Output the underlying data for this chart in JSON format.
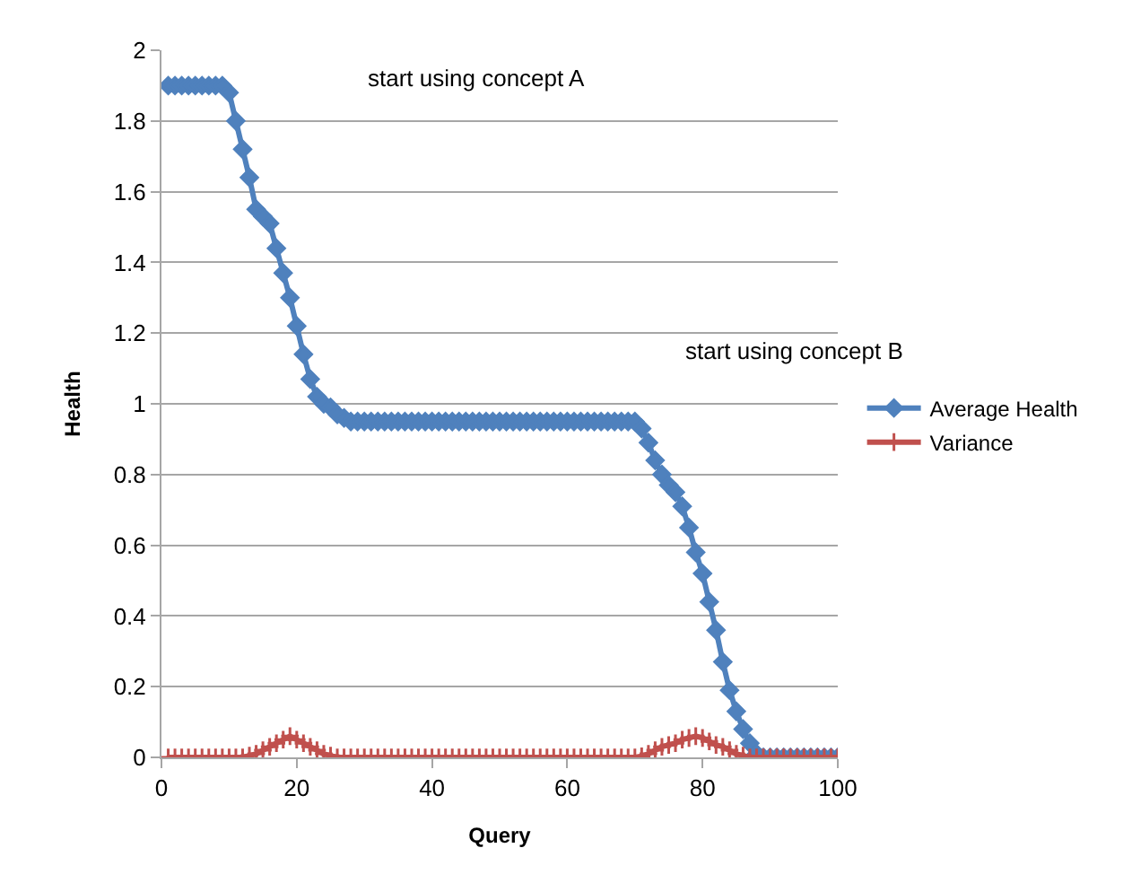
{
  "chart_data": {
    "type": "line",
    "xlabel": "Query",
    "ylabel": "Health",
    "annotations": [
      "start using concept A",
      "start using concept B"
    ],
    "x": [
      1,
      2,
      3,
      4,
      5,
      6,
      7,
      8,
      9,
      10,
      11,
      12,
      13,
      14,
      15,
      16,
      17,
      18,
      19,
      20,
      21,
      22,
      23,
      24,
      25,
      26,
      27,
      28,
      29,
      30,
      31,
      32,
      33,
      34,
      35,
      36,
      37,
      38,
      39,
      40,
      41,
      42,
      43,
      44,
      45,
      46,
      47,
      48,
      49,
      50,
      51,
      52,
      53,
      54,
      55,
      56,
      57,
      58,
      59,
      60,
      61,
      62,
      63,
      64,
      65,
      66,
      67,
      68,
      69,
      70,
      71,
      72,
      73,
      74,
      75,
      76,
      77,
      78,
      79,
      80,
      81,
      82,
      83,
      84,
      85,
      86,
      87,
      88,
      89,
      90,
      91,
      92,
      93,
      94,
      95,
      96,
      97,
      98,
      99,
      100
    ],
    "series": [
      {
        "name": "Average Health",
        "color": "#4f81bd",
        "marker": "diamond",
        "values": [
          1.9,
          1.9,
          1.9,
          1.9,
          1.9,
          1.9,
          1.9,
          1.9,
          1.9,
          1.88,
          1.8,
          1.72,
          1.64,
          1.55,
          1.53,
          1.51,
          1.44,
          1.37,
          1.3,
          1.22,
          1.14,
          1.07,
          1.02,
          1.0,
          0.99,
          0.97,
          0.96,
          0.95,
          0.95,
          0.95,
          0.95,
          0.95,
          0.95,
          0.95,
          0.95,
          0.95,
          0.95,
          0.95,
          0.95,
          0.95,
          0.95,
          0.95,
          0.95,
          0.95,
          0.95,
          0.95,
          0.95,
          0.95,
          0.95,
          0.95,
          0.95,
          0.95,
          0.95,
          0.95,
          0.95,
          0.95,
          0.95,
          0.95,
          0.95,
          0.95,
          0.95,
          0.95,
          0.95,
          0.95,
          0.95,
          0.95,
          0.95,
          0.95,
          0.95,
          0.95,
          0.93,
          0.89,
          0.84,
          0.8,
          0.77,
          0.75,
          0.71,
          0.65,
          0.58,
          0.52,
          0.44,
          0.36,
          0.27,
          0.19,
          0.13,
          0.08,
          0.04,
          0.01,
          0,
          0,
          0,
          0,
          0,
          0,
          0,
          0,
          0,
          0,
          0,
          0
        ]
      },
      {
        "name": "Variance",
        "color": "#c0504d",
        "marker": "cross",
        "values": [
          0,
          0,
          0,
          0,
          0,
          0,
          0,
          0,
          0,
          0,
          0,
          0,
          0.005,
          0.01,
          0.02,
          0.03,
          0.04,
          0.05,
          0.06,
          0.05,
          0.04,
          0.03,
          0.02,
          0.01,
          0.005,
          0,
          0,
          0,
          0,
          0,
          0,
          0,
          0,
          0,
          0,
          0,
          0,
          0,
          0,
          0,
          0,
          0,
          0,
          0,
          0,
          0,
          0,
          0,
          0,
          0,
          0,
          0,
          0,
          0,
          0,
          0,
          0,
          0,
          0,
          0,
          0,
          0,
          0,
          0,
          0,
          0,
          0,
          0,
          0,
          0,
          0.003,
          0.01,
          0.02,
          0.03,
          0.035,
          0.04,
          0.05,
          0.055,
          0.06,
          0.055,
          0.045,
          0.035,
          0.03,
          0.02,
          0.01,
          0.005,
          0,
          0,
          0,
          0,
          0,
          0,
          0,
          0,
          0,
          0,
          0,
          0,
          0,
          0
        ]
      }
    ],
    "xlim": [
      0,
      100
    ],
    "xticks": [
      0,
      20,
      40,
      60,
      80,
      100
    ],
    "ylim": [
      0,
      2
    ],
    "yticks": [
      0,
      0.2,
      0.4,
      0.6,
      0.8,
      1,
      1.2,
      1.4,
      1.6,
      1.8,
      2
    ],
    "grid": "y",
    "legend": "right"
  }
}
